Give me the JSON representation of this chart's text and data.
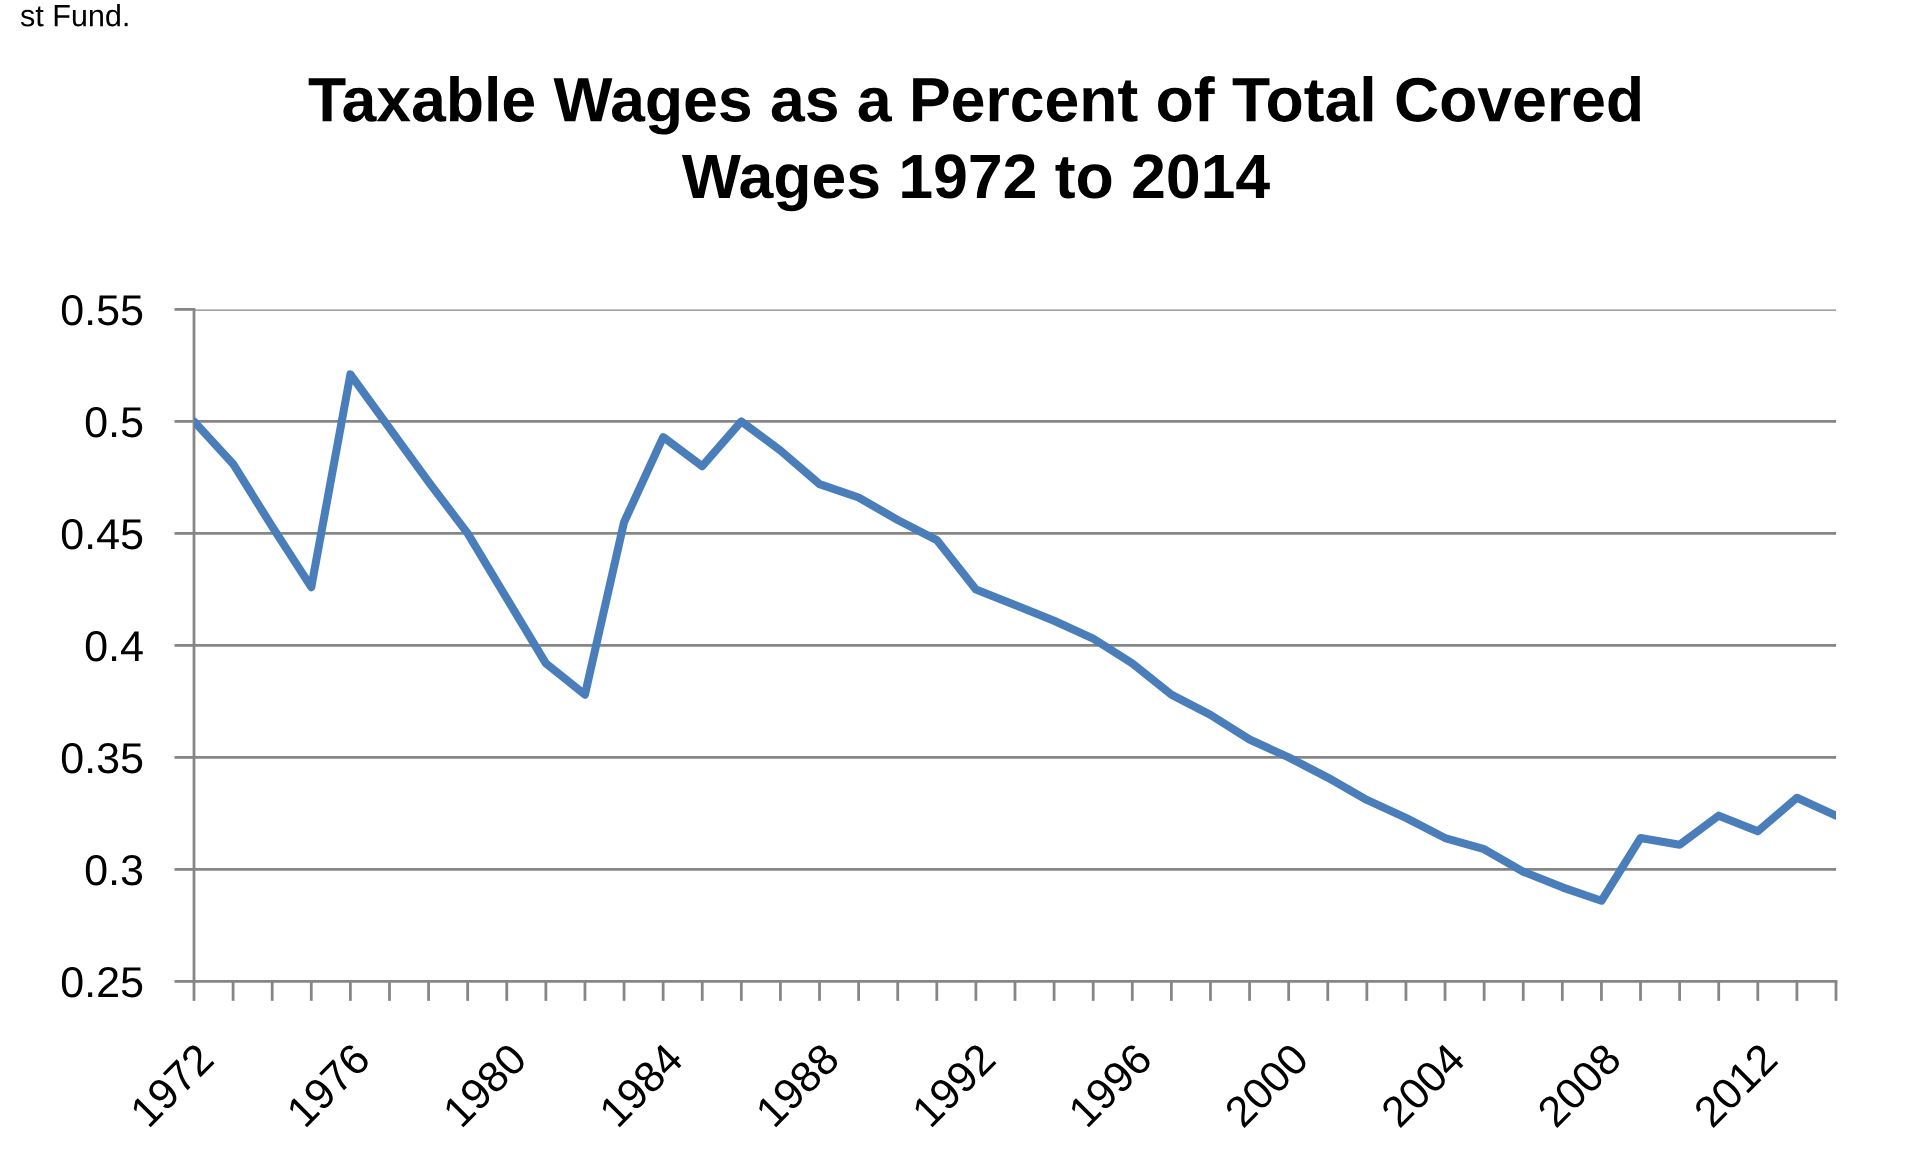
{
  "chart_data": {
    "type": "line",
    "title": "Taxable Wages as a Percent of Total Covered Wages 1972 to 2014",
    "annotations": [
      "st Fund."
    ],
    "categories": [
      "1972",
      null,
      null,
      null,
      "1976",
      null,
      null,
      null,
      "1980",
      null,
      null,
      null,
      "1984",
      null,
      null,
      null,
      "1988",
      null,
      null,
      null,
      "1992",
      null,
      null,
      null,
      "1996",
      null,
      null,
      null,
      "2000",
      null,
      null,
      null,
      "2004",
      null,
      null,
      null,
      "2008",
      null,
      null,
      null,
      "2012",
      null,
      null
    ],
    "series": [
      {
        "color": "#4a7ebb",
        "values": [
          0.5,
          0.481,
          0.453,
          0.426,
          0.521,
          0.497,
          0.473,
          0.45,
          0.421,
          0.392,
          0.378,
          0.455,
          0.493,
          0.48,
          0.5,
          0.487,
          0.472,
          0.466,
          0.456,
          0.447,
          0.425,
          0.418,
          0.411,
          0.403,
          0.392,
          0.378,
          0.369,
          0.358,
          0.35,
          0.341,
          0.331,
          0.323,
          0.314,
          0.309,
          0.299,
          0.292,
          0.286,
          0.314,
          0.311,
          0.324,
          0.317,
          0.332,
          0.324
        ]
      }
    ],
    "ylim": [
      0.25,
      0.55
    ],
    "yticks": [
      0.25,
      0.3,
      0.35,
      0.4,
      0.45,
      0.5,
      0.55
    ],
    "grid": "y",
    "line_style": "solid"
  }
}
